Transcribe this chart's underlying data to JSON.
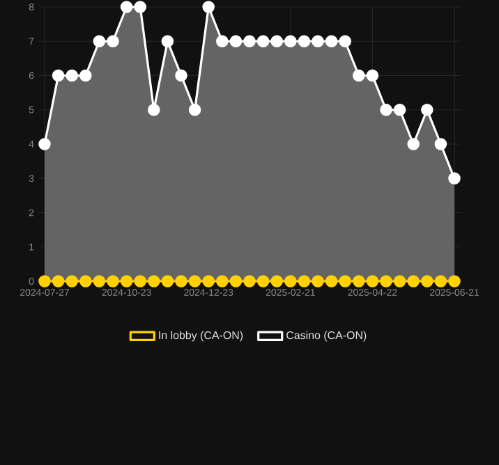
{
  "chart_data": {
    "type": "area",
    "categories": [
      "2024-07-27",
      null,
      null,
      null,
      null,
      null,
      "2024-10-23",
      null,
      null,
      null,
      null,
      null,
      "2024-12-23",
      null,
      null,
      null,
      null,
      null,
      "2025-02-21",
      null,
      null,
      null,
      null,
      null,
      "2025-04-22",
      null,
      null,
      null,
      null,
      null,
      "2025-06-21"
    ],
    "series": [
      {
        "name": "In lobby (CA-ON)",
        "type": "line",
        "color": "#ffd200",
        "values": [
          0,
          0,
          0,
          0,
          0,
          0,
          0,
          0,
          0,
          0,
          0,
          0,
          0,
          0,
          0,
          0,
          0,
          0,
          0,
          0,
          0,
          0,
          0,
          0,
          0,
          0,
          0,
          0,
          0,
          0,
          0
        ]
      },
      {
        "name": "Casino (CA-ON)",
        "color": "#ffffff",
        "values": [
          4,
          6,
          6,
          6,
          7,
          7,
          8,
          8,
          5,
          7,
          6,
          5,
          8,
          7,
          7,
          7,
          7,
          7,
          7,
          7,
          7,
          7,
          7,
          6,
          6,
          5,
          5,
          4,
          5,
          4,
          3
        ]
      }
    ],
    "ylim": [
      0,
      8
    ],
    "yticks": [
      0,
      1,
      2,
      3,
      4,
      5,
      6,
      7,
      8
    ],
    "grid": true,
    "legend": "bottom",
    "marker": "circle"
  }
}
